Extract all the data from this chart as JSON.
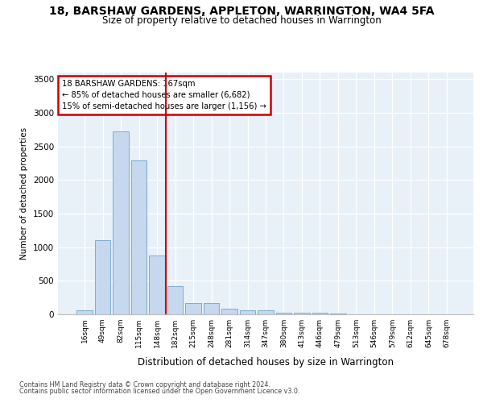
{
  "title": "18, BARSHAW GARDENS, APPLETON, WARRINGTON, WA4 5FA",
  "subtitle": "Size of property relative to detached houses in Warrington",
  "xlabel": "Distribution of detached houses by size in Warrington",
  "ylabel": "Number of detached properties",
  "categories": [
    "16sqm",
    "49sqm",
    "82sqm",
    "115sqm",
    "148sqm",
    "182sqm",
    "215sqm",
    "248sqm",
    "281sqm",
    "314sqm",
    "347sqm",
    "380sqm",
    "413sqm",
    "446sqm",
    "479sqm",
    "513sqm",
    "546sqm",
    "579sqm",
    "612sqm",
    "645sqm",
    "678sqm"
  ],
  "values": [
    55,
    1100,
    2730,
    2290,
    880,
    420,
    170,
    165,
    90,
    60,
    55,
    30,
    25,
    20,
    10,
    0,
    0,
    0,
    0,
    0,
    0
  ],
  "bar_color": "#c5d8ee",
  "bar_edge_color": "#7aaed4",
  "vline_x": 4.5,
  "vline_color": "#cc0000",
  "annotation_text": "18 BARSHAW GARDENS: 167sqm\n← 85% of detached houses are smaller (6,682)\n15% of semi-detached houses are larger (1,156) →",
  "annotation_box_color": "#cc0000",
  "ylim": [
    0,
    3600
  ],
  "yticks": [
    0,
    500,
    1000,
    1500,
    2000,
    2500,
    3000,
    3500
  ],
  "bg_color": "#e8f0f8",
  "grid_color": "#ffffff",
  "footer_line1": "Contains HM Land Registry data © Crown copyright and database right 2024.",
  "footer_line2": "Contains public sector information licensed under the Open Government Licence v3.0."
}
